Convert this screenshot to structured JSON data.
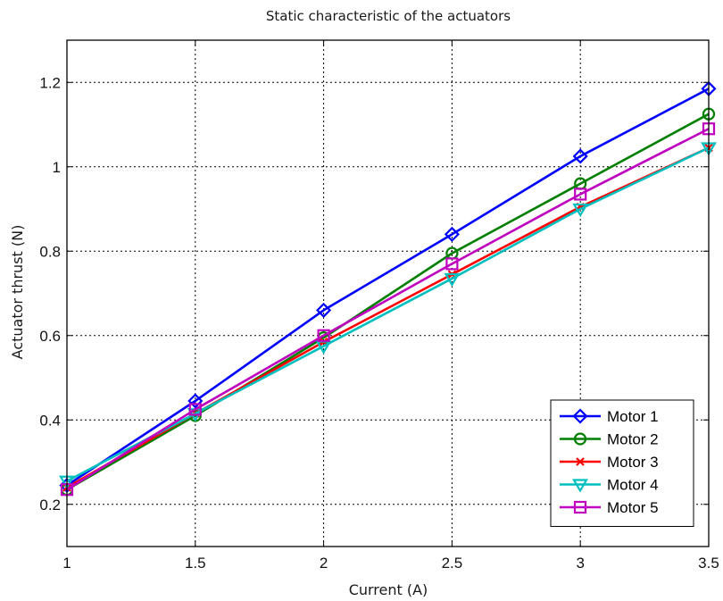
{
  "chart_data": {
    "type": "line",
    "title": "Static characteristic of the actuators",
    "xlabel": "Current (A)",
    "ylabel": "Actuator thrust (N)",
    "x": [
      1,
      1.5,
      2,
      2.5,
      3,
      3.5
    ],
    "xlim": [
      1,
      3.5
    ],
    "ylim": [
      0.1,
      1.3
    ],
    "xticks": [
      "1",
      "1.5",
      "2",
      "2.5",
      "3",
      "3.5"
    ],
    "yticks": [
      0.2,
      0.4,
      0.6,
      0.8,
      1,
      1.2
    ],
    "ytick_labels": [
      "0.2",
      "0.4",
      "0.6",
      "0.8",
      "1",
      "1.2"
    ],
    "grid": true,
    "legend_position": "bottom-right",
    "series": [
      {
        "name": "Motor 1",
        "color": "#0000ff",
        "marker": "diamond",
        "values": [
          0.245,
          0.445,
          0.66,
          0.84,
          1.025,
          1.185
        ]
      },
      {
        "name": "Motor 2",
        "color": "#007f00",
        "marker": "circle",
        "values": [
          0.235,
          0.41,
          0.595,
          0.795,
          0.96,
          1.125
        ]
      },
      {
        "name": "Motor 3",
        "color": "#ff0000",
        "marker": "x",
        "values": [
          0.24,
          0.415,
          0.585,
          0.745,
          0.905,
          1.045
        ]
      },
      {
        "name": "Motor 4",
        "color": "#00bfbf",
        "marker": "triangle-down",
        "values": [
          0.255,
          0.415,
          0.575,
          0.735,
          0.9,
          1.045
        ]
      },
      {
        "name": "Motor 5",
        "color": "#bf00bf",
        "marker": "square",
        "values": [
          0.235,
          0.425,
          0.6,
          0.77,
          0.935,
          1.09
        ]
      }
    ]
  }
}
